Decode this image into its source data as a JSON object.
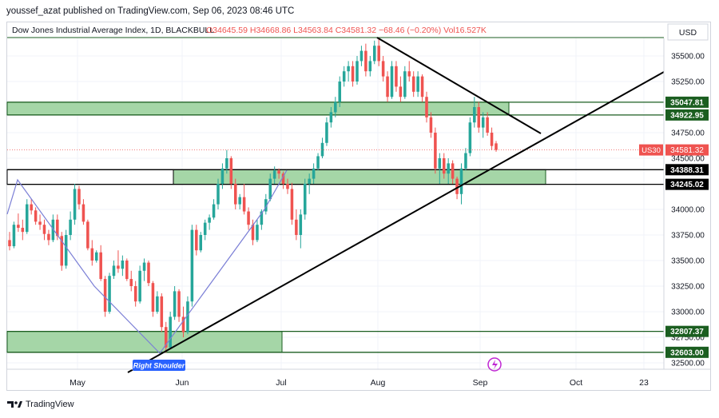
{
  "publisher_line": "youssef_azat published on TradingView.com, Sep 06, 2023 08:46 UTC",
  "footer_brand": "TradingView",
  "footer_icon": "tradingview-logo-icon",
  "chart_data": {
    "type": "candlestick",
    "title": "Dow Jones Industrial Average Index, 1D, BLACKBULL",
    "ohlc": {
      "O_label": "O",
      "O": "34645.59",
      "H_label": "H",
      "H": "34668.86",
      "L_label": "L",
      "L": "34563.84",
      "C_label": "C",
      "C": "34581.32",
      "change": "−68.46 (−0.20%)",
      "vol_label": "Vol",
      "vol": "16.527K"
    },
    "currency": "USD",
    "symbol_tag": "US30",
    "last_price": "34581.32",
    "y_ticks": [
      "35500.00",
      "35250.00",
      "34750.00",
      "34500.00",
      "34000.00",
      "33750.00",
      "33500.00",
      "33250.00",
      "33000.00",
      "32750.00",
      "32500.00"
    ],
    "x_ticks": [
      "May",
      "Jun",
      "Jul",
      "Aug",
      "Sep",
      "Oct",
      "23"
    ],
    "levels": [
      "35047.81",
      "34922.95",
      "34388.31",
      "34245.02",
      "32807.37",
      "32603.00"
    ],
    "annotation": "Right Shoulder",
    "colors": {
      "up": "#26a69a",
      "down": "#ef5350",
      "zone": "#a5d6a7",
      "zone_edge": "#1b5e20",
      "pattern_line": "#7b7fd6",
      "trend_line": "#000000",
      "label_bg": "#2962ff"
    },
    "candles": [
      [
        33700,
        33780,
        33600,
        33640
      ],
      [
        33640,
        33880,
        33620,
        33850
      ],
      [
        33850,
        33960,
        33780,
        33820
      ],
      [
        33820,
        33900,
        33700,
        33780
      ],
      [
        33780,
        34100,
        33760,
        34050
      ],
      [
        34050,
        34100,
        33950,
        33990
      ],
      [
        33990,
        34020,
        33850,
        33880
      ],
      [
        33880,
        33950,
        33800,
        33850
      ],
      [
        33850,
        33900,
        33700,
        33760
      ],
      [
        33760,
        33800,
        33650,
        33700
      ],
      [
        33700,
        33950,
        33680,
        33900
      ],
      [
        33900,
        33950,
        33700,
        33740
      ],
      [
        33740,
        33780,
        33400,
        33450
      ],
      [
        33450,
        33800,
        33420,
        33750
      ],
      [
        33750,
        33980,
        33700,
        33900
      ],
      [
        33900,
        34250,
        33850,
        34200
      ],
      [
        34200,
        34230,
        34000,
        34050
      ],
      [
        34050,
        34100,
        33850,
        33880
      ],
      [
        33880,
        33900,
        33600,
        33620
      ],
      [
        33620,
        33700,
        33450,
        33500
      ],
      [
        33500,
        33600,
        33480,
        33580
      ],
      [
        33580,
        33650,
        33300,
        33320
      ],
      [
        33320,
        33350,
        32950,
        33000
      ],
      [
        33000,
        33380,
        32980,
        33350
      ],
      [
        33350,
        33500,
        33320,
        33450
      ],
      [
        33450,
        33600,
        33380,
        33420
      ],
      [
        33420,
        33550,
        33350,
        33500
      ],
      [
        33500,
        33520,
        33300,
        33320
      ],
      [
        33320,
        33400,
        33200,
        33250
      ],
      [
        33250,
        33300,
        33050,
        33100
      ],
      [
        33100,
        33450,
        33080,
        33400
      ],
      [
        33400,
        33520,
        33300,
        33480
      ],
      [
        33480,
        33500,
        33250,
        33280
      ],
      [
        33280,
        33300,
        32950,
        33000
      ],
      [
        33000,
        33200,
        32980,
        33150
      ],
      [
        33150,
        33180,
        32800,
        32850
      ],
      [
        32850,
        32900,
        32600,
        32650
      ],
      [
        32650,
        33000,
        32640,
        32950
      ],
      [
        32950,
        33250,
        32920,
        33200
      ],
      [
        33200,
        33220,
        32900,
        32950
      ],
      [
        32950,
        33050,
        32750,
        32800
      ],
      [
        32800,
        33150,
        32780,
        33100
      ],
      [
        33100,
        33850,
        33050,
        33800
      ],
      [
        33800,
        33850,
        33550,
        33600
      ],
      [
        33600,
        33780,
        33580,
        33750
      ],
      [
        33750,
        33900,
        33700,
        33870
      ],
      [
        33870,
        33950,
        33800,
        33920
      ],
      [
        33920,
        34100,
        33900,
        34050
      ],
      [
        34050,
        34300,
        34000,
        34250
      ],
      [
        34250,
        34450,
        34200,
        34400
      ],
      [
        34400,
        34580,
        34350,
        34500
      ],
      [
        34500,
        34520,
        34200,
        34250
      ],
      [
        34250,
        34300,
        34000,
        34050
      ],
      [
        34050,
        34150,
        34000,
        34120
      ],
      [
        34120,
        34250,
        33950,
        33980
      ],
      [
        33980,
        34020,
        33800,
        33850
      ],
      [
        33850,
        33900,
        33650,
        33700
      ],
      [
        33700,
        33900,
        33680,
        33850
      ],
      [
        33850,
        34000,
        33800,
        33980
      ],
      [
        33980,
        34150,
        33950,
        34100
      ],
      [
        34100,
        34350,
        34080,
        34300
      ],
      [
        34300,
        34420,
        34250,
        34380
      ],
      [
        34380,
        34400,
        34300,
        34350
      ],
      [
        34350,
        34370,
        34200,
        34250
      ],
      [
        34250,
        34300,
        34150,
        34200
      ],
      [
        34200,
        34260,
        33850,
        33900
      ],
      [
        33900,
        34000,
        33700,
        33750
      ],
      [
        33750,
        34000,
        33620,
        33950
      ],
      [
        33950,
        34300,
        33900,
        34250
      ],
      [
        34250,
        34350,
        34150,
        34300
      ],
      [
        34300,
        34450,
        34250,
        34400
      ],
      [
        34400,
        34550,
        34380,
        34520
      ],
      [
        34520,
        34700,
        34500,
        34650
      ],
      [
        34650,
        34900,
        34620,
        34850
      ],
      [
        34850,
        35000,
        34800,
        34950
      ],
      [
        34950,
        35100,
        34900,
        35050
      ],
      [
        35050,
        35300,
        35000,
        35250
      ],
      [
        35250,
        35400,
        35200,
        35350
      ],
      [
        35350,
        35450,
        35250,
        35400
      ],
      [
        35400,
        35450,
        35200,
        35250
      ],
      [
        35250,
        35500,
        35220,
        35450
      ],
      [
        35450,
        35600,
        35400,
        35550
      ],
      [
        35550,
        35620,
        35300,
        35350
      ],
      [
        35350,
        35500,
        35300,
        35450
      ],
      [
        35450,
        35650,
        35420,
        35600
      ],
      [
        35600,
        35680,
        35400,
        35450
      ],
      [
        35450,
        35500,
        35250,
        35300
      ],
      [
        35300,
        35350,
        35050,
        35100
      ],
      [
        35100,
        35450,
        35080,
        35400
      ],
      [
        35400,
        35450,
        35150,
        35200
      ],
      [
        35200,
        35300,
        35050,
        35100
      ],
      [
        35100,
        35400,
        35080,
        35350
      ],
      [
        35350,
        35450,
        35250,
        35300
      ],
      [
        35300,
        35350,
        35100,
        35150
      ],
      [
        35150,
        35350,
        35100,
        35300
      ],
      [
        35300,
        35320,
        35050,
        35100
      ],
      [
        35100,
        35150,
        34850,
        34900
      ],
      [
        34900,
        34950,
        34700,
        34750
      ],
      [
        34750,
        34800,
        34350,
        34400
      ],
      [
        34400,
        34550,
        34250,
        34500
      ],
      [
        34500,
        34550,
        34300,
        34350
      ],
      [
        34350,
        34500,
        34250,
        34450
      ],
      [
        34450,
        34480,
        34250,
        34300
      ],
      [
        34300,
        34320,
        34100,
        34150
      ],
      [
        34150,
        34450,
        34050,
        34400
      ],
      [
        34400,
        34600,
        34380,
        34550
      ],
      [
        34550,
        34900,
        34520,
        34850
      ],
      [
        34850,
        35100,
        34800,
        35000
      ],
      [
        35000,
        35050,
        34750,
        34800
      ],
      [
        34800,
        34950,
        34700,
        34900
      ],
      [
        34900,
        34950,
        34720,
        34750
      ],
      [
        34750,
        34800,
        34580,
        34620
      ],
      [
        34645.59,
        34668.86,
        34563.84,
        34581.32
      ]
    ]
  }
}
